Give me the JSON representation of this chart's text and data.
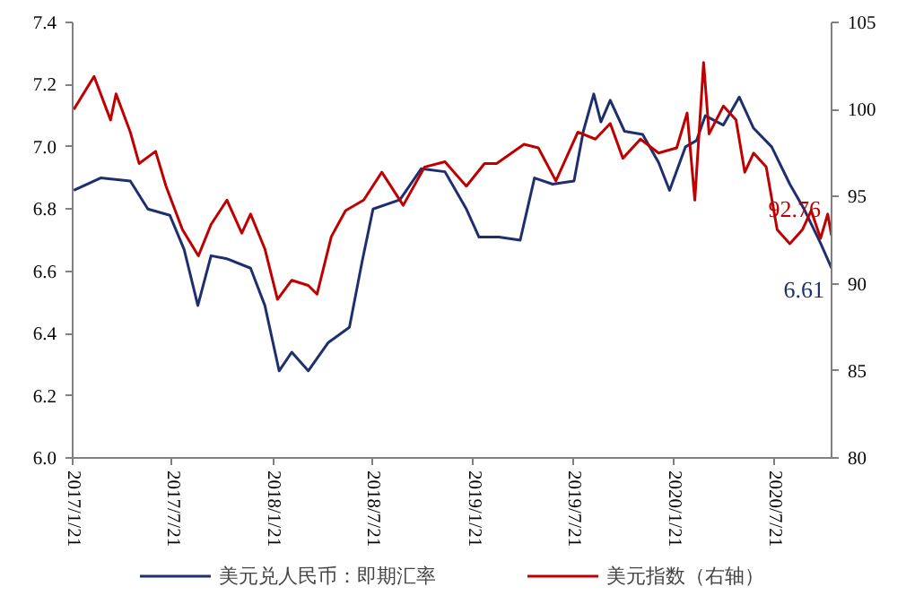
{
  "chart_data": {
    "type": "line",
    "xlim": [
      "2017-01-21",
      "2020-11-03"
    ],
    "xticks": [
      {
        "value": "2017-01-21",
        "label": "2017/1/21"
      },
      {
        "value": "2017-07-21",
        "label": "2017/7/21"
      },
      {
        "value": "2018-01-21",
        "label": "2018/1/21"
      },
      {
        "value": "2018-07-21",
        "label": "2018/7/21"
      },
      {
        "value": "2019-01-21",
        "label": "2019/1/21"
      },
      {
        "value": "2019-07-21",
        "label": "2019/7/21"
      },
      {
        "value": "2020-01-21",
        "label": "2020/1/21"
      },
      {
        "value": "2020-07-21",
        "label": "2020/7/21"
      }
    ],
    "ylim": [
      6.0,
      7.4
    ],
    "yticks": [
      {
        "value": 6.0,
        "label": "6.0"
      },
      {
        "value": 6.2,
        "label": "6.2"
      },
      {
        "value": 6.4,
        "label": "6.4"
      },
      {
        "value": 6.6,
        "label": "6.6"
      },
      {
        "value": 6.8,
        "label": "6.8"
      },
      {
        "value": 7.0,
        "label": "7.0"
      },
      {
        "value": 7.2,
        "label": "7.2"
      },
      {
        "value": 7.4,
        "label": "7.4"
      }
    ],
    "y2lim": [
      80,
      105
    ],
    "y2ticks": [
      80,
      85,
      90,
      95,
      100,
      105
    ],
    "grid": false,
    "legend": "bottom",
    "series": [
      {
        "name": "美元兑人民币：即期汇率",
        "color": "#1f2f6e",
        "x": [
          "2017-01-23",
          "2017-03-13",
          "2017-05-06",
          "2017-06-07",
          "2017-07-17",
          "2017-08-12",
          "2017-09-06",
          "2017-09-30",
          "2017-10-29",
          "2017-12-11",
          "2018-01-06",
          "2018-02-01",
          "2018-02-24",
          "2018-03-26",
          "2018-05-01",
          "2018-06-09",
          "2018-07-02",
          "2018-07-22",
          "2018-09-09",
          "2018-10-18",
          "2018-11-30",
          "2019-01-08",
          "2019-01-31",
          "2019-03-08",
          "2019-04-16",
          "2019-05-12",
          "2019-06-14",
          "2019-07-23",
          "2019-08-09",
          "2019-08-28",
          "2019-09-10",
          "2019-09-27",
          "2019-10-23",
          "2019-11-25",
          "2019-12-24",
          "2020-01-13",
          "2020-02-11",
          "2020-03-02",
          "2020-03-18",
          "2020-04-20",
          "2020-05-19",
          "2020-06-14",
          "2020-07-17",
          "2020-08-19",
          "2020-09-14",
          "2020-10-14",
          "2020-11-03"
        ],
        "values": [
          6.86,
          6.9,
          6.89,
          6.8,
          6.78,
          6.67,
          6.49,
          6.65,
          6.64,
          6.61,
          6.49,
          6.28,
          6.34,
          6.28,
          6.37,
          6.42,
          6.63,
          6.8,
          6.83,
          6.93,
          6.92,
          6.8,
          6.71,
          6.71,
          6.7,
          6.9,
          6.88,
          6.89,
          7.05,
          7.17,
          7.08,
          7.15,
          7.05,
          7.04,
          6.95,
          6.86,
          7.0,
          7.02,
          7.1,
          7.07,
          7.16,
          7.06,
          7.0,
          6.88,
          6.8,
          6.69,
          6.61
        ],
        "value_labels": [
          null,
          null,
          null,
          null,
          null,
          null,
          null,
          null,
          null,
          null,
          null,
          null,
          null,
          null,
          null,
          null,
          null,
          null,
          null,
          null,
          null,
          null,
          null,
          null,
          null,
          null,
          null,
          null,
          null,
          null,
          null,
          null,
          null,
          null,
          null,
          null,
          null,
          null,
          null,
          null,
          null,
          null,
          null,
          null,
          null,
          null,
          "6.61"
        ]
      },
      {
        "name": "美元指数（右轴）",
        "color": "#c00000",
        "axis": "y2",
        "x": [
          "2017-01-23",
          "2017-03-01",
          "2017-03-31",
          "2017-04-10",
          "2017-05-06",
          "2017-05-22",
          "2017-06-21",
          "2017-07-10",
          "2017-08-09",
          "2017-09-07",
          "2017-09-30",
          "2017-10-29",
          "2017-11-25",
          "2017-12-11",
          "2018-01-06",
          "2018-01-29",
          "2018-02-24",
          "2018-03-26",
          "2018-04-11",
          "2018-05-07",
          "2018-06-02",
          "2018-07-05",
          "2018-08-07",
          "2018-09-15",
          "2018-10-24",
          "2018-11-30",
          "2019-01-08",
          "2019-02-10",
          "2019-03-04",
          "2019-04-23",
          "2019-05-19",
          "2019-06-20",
          "2019-07-30",
          "2019-08-31",
          "2019-09-27",
          "2019-10-20",
          "2019-11-21",
          "2019-12-24",
          "2020-01-26",
          "2020-02-14",
          "2020-02-28",
          "2020-03-15",
          "2020-03-25",
          "2020-04-20",
          "2020-05-13",
          "2020-05-29",
          "2020-06-14",
          "2020-07-07",
          "2020-07-27",
          "2020-08-19",
          "2020-09-11",
          "2020-09-27",
          "2020-10-14",
          "2020-10-27",
          "2020-11-03"
        ],
        "values": [
          100.0,
          101.9,
          99.4,
          100.9,
          98.7,
          96.9,
          97.6,
          95.6,
          93.1,
          91.6,
          93.4,
          94.8,
          92.9,
          94.0,
          92.0,
          89.1,
          90.2,
          89.9,
          89.4,
          92.7,
          94.2,
          94.8,
          96.4,
          94.5,
          96.7,
          97.0,
          95.6,
          96.9,
          96.9,
          98.0,
          97.8,
          95.9,
          98.7,
          98.3,
          99.2,
          97.2,
          98.3,
          97.5,
          97.8,
          99.8,
          94.8,
          102.7,
          98.6,
          100.2,
          99.4,
          96.4,
          97.5,
          96.7,
          93.1,
          92.3,
          93.1,
          94.2,
          92.6,
          94.0,
          92.76
        ],
        "value_labels": [
          null,
          null,
          null,
          null,
          null,
          null,
          null,
          null,
          null,
          null,
          null,
          null,
          null,
          null,
          null,
          null,
          null,
          null,
          null,
          null,
          null,
          null,
          null,
          null,
          null,
          null,
          null,
          null,
          null,
          null,
          null,
          null,
          null,
          null,
          null,
          null,
          null,
          null,
          null,
          null,
          null,
          null,
          null,
          null,
          null,
          null,
          null,
          null,
          null,
          null,
          null,
          null,
          null,
          null,
          "92.76"
        ]
      }
    ]
  }
}
